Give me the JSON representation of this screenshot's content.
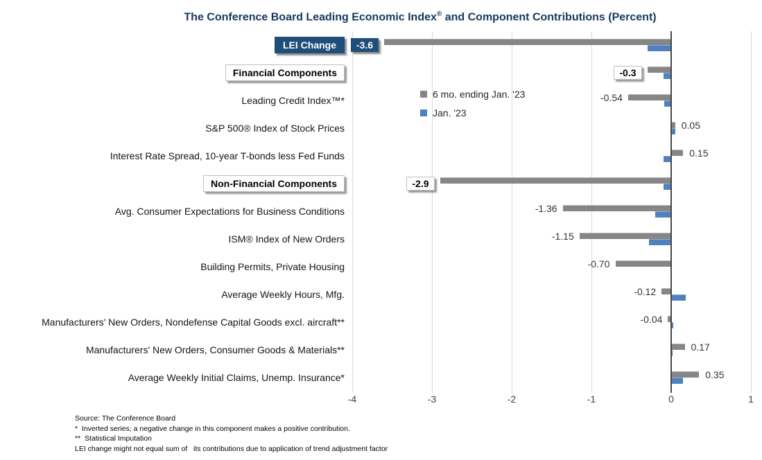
{
  "title": {
    "part1": "The Conference Board Leading Economic Index",
    "sup": "®",
    "part2": " and Component Contributions (Percent)"
  },
  "chart_data": {
    "type": "bar",
    "orientation": "horizontal",
    "title": "The Conference Board Leading Economic Index® and Component Contributions (Percent)",
    "xlabel": "",
    "xlim": [
      -4,
      1
    ],
    "xticks": [
      -4,
      -3,
      -2,
      -1,
      0,
      1
    ],
    "grid": true,
    "legend_position": "inside-upper-middle",
    "categories": [
      "LEI Change",
      "Financial Components",
      "Leading Credit Index™*",
      "S&P 500® Index of Stock Prices",
      "Interest Rate Spread, 10-year T-bonds less Fed Funds",
      "Non-Financial Components",
      "Avg. Consumer Expectations for Business Conditions",
      "ISM® Index of New Orders",
      "Building Permits, Private Housing",
      "Average Weekly Hours, Mfg.",
      "Manufacturers' New Orders, Nondefense Capital Goods excl. aircraft**",
      "Manufacturers' New Orders, Consumer Goods & Materials**",
      "Average Weekly Initial Claims, Unemp. Insurance*"
    ],
    "category_styles": [
      "navy-box",
      "white-box",
      "plain",
      "plain",
      "plain",
      "white-box",
      "plain",
      "plain",
      "plain",
      "plain",
      "plain",
      "plain",
      "plain"
    ],
    "series": [
      {
        "name": "6 mo. ending Jan. '23",
        "color": "#868686",
        "values": [
          -3.6,
          -0.3,
          -0.54,
          0.05,
          0.15,
          -2.9,
          -1.36,
          -1.15,
          -0.7,
          -0.12,
          -0.04,
          0.17,
          0.35
        ],
        "value_labels": [
          "-3.6",
          "-0.3",
          "-0.54",
          "0.05",
          "0.15",
          "-2.9",
          "-1.36",
          "-1.15",
          "-0.70",
          "-0.12",
          "-0.04",
          "0.17",
          "0.35"
        ],
        "value_label_styles": [
          "navy-box",
          "white-box",
          "plain",
          "plain",
          "plain",
          "white-box",
          "plain",
          "plain",
          "plain",
          "plain",
          "plain",
          "plain",
          "plain"
        ]
      },
      {
        "name": "Jan. '23",
        "color": "#4E81BD",
        "values": [
          -0.3,
          -0.1,
          -0.09,
          0.05,
          -0.1,
          -0.1,
          -0.2,
          -0.28,
          0,
          0.18,
          0.03,
          0.02,
          0.15
        ],
        "value_labels": null
      }
    ]
  },
  "colors": {
    "title": "#17375E",
    "navy_box": "#1F4E79",
    "gridline": "#D9D9D9",
    "zero_axis": "#474747",
    "gray_series": "#868686",
    "blue_series": "#4E81BD"
  },
  "footnotes": [
    "Source: The Conference Board",
    "*  Inverted series; a negative change in this component makes a positive contribution.",
    "**  Statistical Imputation",
    "LEI change might not equal sum of   its contributions due to application of trend adjustment factor"
  ]
}
